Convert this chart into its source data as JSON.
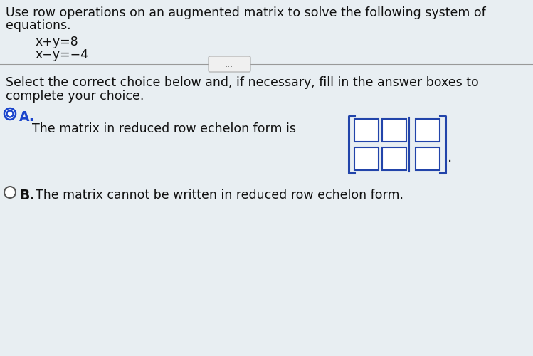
{
  "bg_color": "#e8eef2",
  "title_line1": "Use row operations on an augmented matrix to solve the following system of",
  "title_line2": "equations.",
  "eq1": "x+y=8",
  "eq2": "x−y=−4",
  "divider_dots": "...",
  "instruction_line1": "Select the correct choice below and, if necessary, fill in the answer boxes to",
  "instruction_line2": "complete your choice.",
  "choice_A_label": "A.",
  "choice_A_text": "The matrix in reduced row echelon form is",
  "choice_B_label": "B.",
  "choice_B_text": "  The matrix cannot be written in reduced row echelon form.",
  "text_color": "#111111",
  "blue_color": "#1a44cc",
  "box_color": "#2244aa",
  "font_size_main": 12.5,
  "font_size_eq": 12.5
}
